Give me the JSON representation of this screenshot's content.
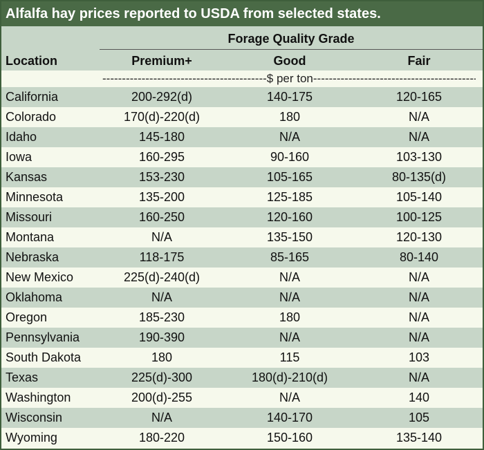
{
  "title": "Alfalfa hay prices reported to USDA from selected states.",
  "header": {
    "grade_label": "Forage Quality Grade",
    "location": "Location",
    "premium": "Premium+",
    "good": "Good",
    "fair": "Fair"
  },
  "units": "------------------------------------------$ per ton-----------------------------------------------",
  "colors": {
    "title_bg": "#4a6a46",
    "shade": "#c7d6c8",
    "light": "#f6f9ec"
  },
  "rows": [
    {
      "location": "California",
      "premium": "200-292(d)",
      "good": "140-175",
      "fair": "120-165"
    },
    {
      "location": "Colorado",
      "premium": "170(d)-220(d)",
      "good": "180",
      "fair": "N/A"
    },
    {
      "location": "Idaho",
      "premium": "145-180",
      "good": "N/A",
      "fair": "N/A"
    },
    {
      "location": "Iowa",
      "premium": "160-295",
      "good": "90-160",
      "fair": "103-130"
    },
    {
      "location": "Kansas",
      "premium": "153-230",
      "good": "105-165",
      "fair": "80-135(d)"
    },
    {
      "location": "Minnesota",
      "premium": "135-200",
      "good": "125-185",
      "fair": "105-140"
    },
    {
      "location": "Missouri",
      "premium": "160-250",
      "good": "120-160",
      "fair": "100-125"
    },
    {
      "location": "Montana",
      "premium": "N/A",
      "good": "135-150",
      "fair": "120-130"
    },
    {
      "location": "Nebraska",
      "premium": "118-175",
      "good": "85-165",
      "fair": "80-140"
    },
    {
      "location": "New Mexico",
      "premium": "225(d)-240(d)",
      "good": "N/A",
      "fair": "N/A"
    },
    {
      "location": "Oklahoma",
      "premium": "N/A",
      "good": "N/A",
      "fair": "N/A"
    },
    {
      "location": "Oregon",
      "premium": "185-230",
      "good": "180",
      "fair": "N/A"
    },
    {
      "location": "Pennsylvania",
      "premium": "190-390",
      "good": "N/A",
      "fair": "N/A"
    },
    {
      "location": "South Dakota",
      "premium": "180",
      "good": "115",
      "fair": "103"
    },
    {
      "location": "Texas",
      "premium": "225(d)-300",
      "good": "180(d)-210(d)",
      "fair": "N/A"
    },
    {
      "location": "Washington",
      "premium": "200(d)-255",
      "good": "N/A",
      "fair": "140"
    },
    {
      "location": "Wisconsin",
      "premium": "N/A",
      "good": "140-170",
      "fair": "105"
    },
    {
      "location": "Wyoming",
      "premium": "180-220",
      "good": "150-160",
      "fair": "135-140"
    }
  ]
}
